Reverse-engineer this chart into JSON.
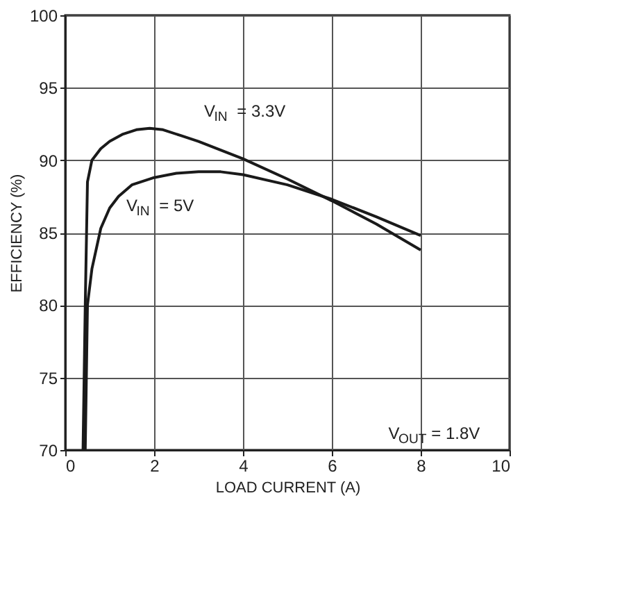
{
  "chart_data": {
    "type": "line",
    "xlabel": "LOAD CURRENT (A)",
    "ylabel": "EFFICIENCY (%)",
    "xlim": [
      0,
      10
    ],
    "ylim": [
      70,
      100
    ],
    "xticks": [
      0,
      2,
      4,
      6,
      8,
      10
    ],
    "yticks": [
      70,
      75,
      80,
      85,
      90,
      95,
      100
    ],
    "grid": true,
    "line_style": "solid",
    "marker": "none",
    "series": [
      {
        "name": "V$_{IN}$ = 3.3V",
        "color": "#1a1a1a",
        "x": [
          0.4,
          0.45,
          0.5,
          0.6,
          0.8,
          1.0,
          1.3,
          1.6,
          1.9,
          2.2,
          2.6,
          3.0,
          3.5,
          4.0,
          5.0,
          6.0,
          7.0,
          8.0
        ],
        "values": [
          70,
          80,
          88.5,
          90.0,
          90.8,
          91.3,
          91.8,
          92.1,
          92.2,
          92.1,
          91.7,
          91.3,
          90.7,
          90.1,
          88.7,
          87.2,
          85.6,
          83.8
        ]
      },
      {
        "name": "V$_{IN}$ = 5V",
        "color": "#1a1a1a",
        "x": [
          0.45,
          0.5,
          0.6,
          0.8,
          1.0,
          1.2,
          1.5,
          2.0,
          2.5,
          3.0,
          3.5,
          4.0,
          5.0,
          6.0,
          7.0,
          8.0
        ],
        "values": [
          70,
          80,
          82.5,
          85.3,
          86.7,
          87.5,
          88.3,
          88.8,
          89.1,
          89.2,
          89.2,
          89.0,
          88.3,
          87.3,
          86.1,
          84.8
        ]
      }
    ],
    "annotations": [
      "V$_{OUT}$ = 1.8V"
    ]
  }
}
